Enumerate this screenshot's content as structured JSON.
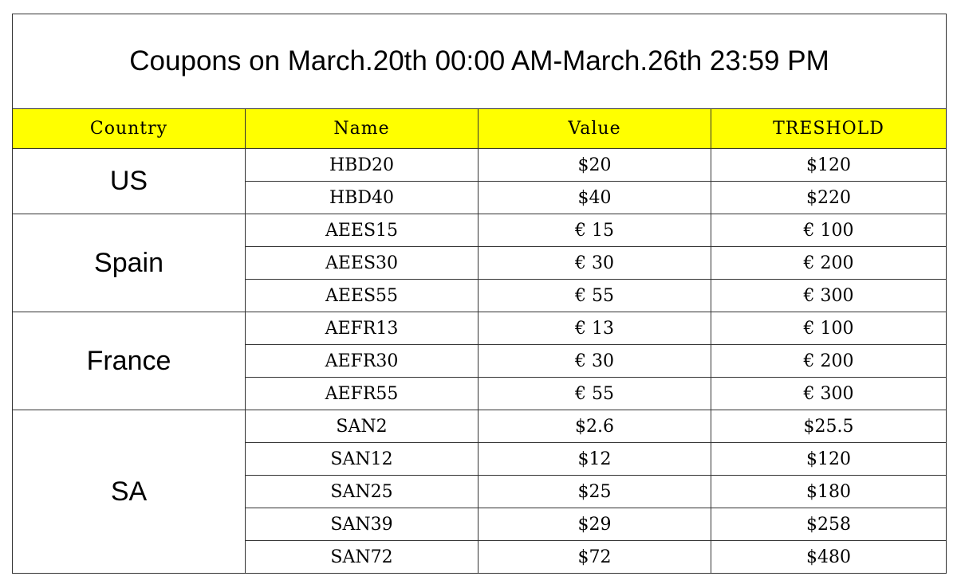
{
  "title": "Coupons on March.20th 00:00 AM-March.26th 23:59 PM",
  "header": {
    "country": "Country",
    "name": "Name",
    "value": "Value",
    "threshold": "TRESHOLD"
  },
  "header_color": "#ffff00",
  "groups": [
    {
      "country": "US",
      "rows": [
        {
          "name": "HBD20",
          "value": "$20",
          "threshold": "$120"
        },
        {
          "name": "HBD40",
          "value": "$40",
          "threshold": "$220"
        }
      ]
    },
    {
      "country": "Spain",
      "rows": [
        {
          "name": "AEES15",
          "value": "€ 15",
          "threshold": "€ 100"
        },
        {
          "name": "AEES30",
          "value": "€ 30",
          "threshold": "€ 200"
        },
        {
          "name": "AEES55",
          "value": "€ 55",
          "threshold": "€ 300"
        }
      ]
    },
    {
      "country": "France",
      "rows": [
        {
          "name": "AEFR13",
          "value": "€ 13",
          "threshold": "€ 100"
        },
        {
          "name": "AEFR30",
          "value": "€ 30",
          "threshold": "€ 200"
        },
        {
          "name": "AEFR55",
          "value": "€ 55",
          "threshold": "€ 300"
        }
      ]
    },
    {
      "country": "SA",
      "rows": [
        {
          "name": "SAN2",
          "value": "$2.6",
          "threshold": "$25.5"
        },
        {
          "name": "SAN12",
          "value": "$12",
          "threshold": "$120"
        },
        {
          "name": "SAN25",
          "value": "$25",
          "threshold": "$180"
        },
        {
          "name": "SAN39",
          "value": "$29",
          "threshold": "$258"
        },
        {
          "name": "SAN72",
          "value": "$72",
          "threshold": "$480"
        }
      ]
    }
  ]
}
